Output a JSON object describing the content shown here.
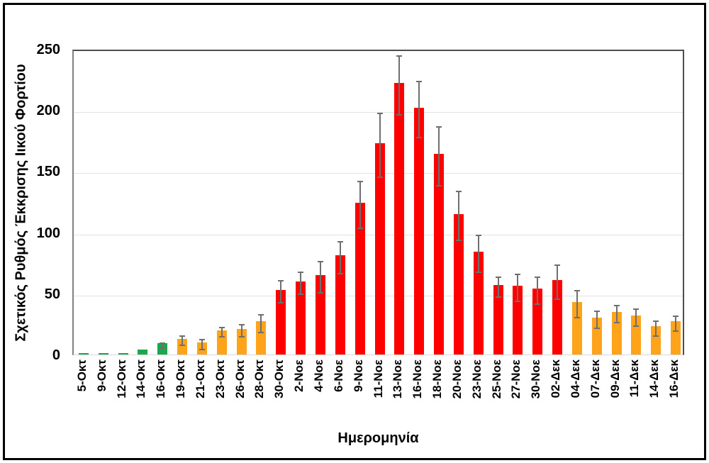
{
  "chart_data": {
    "type": "bar",
    "title": "",
    "xlabel": "Ημερομηνία",
    "ylabel": "Σχετικός Ρυθμός Έκκρισης Ιικού Φορτίου",
    "ylim": [
      0,
      250
    ],
    "yticks": [
      0,
      50,
      100,
      150,
      200,
      250
    ],
    "grid": true,
    "legend": "none",
    "palette": {
      "green": "#1AA84C",
      "orange": "#FFA31A",
      "red": "#FE0000"
    },
    "error_bar_color": "#6F6F6F",
    "categories": [
      "5-Οκτ",
      "9-Οκτ",
      "12-Οκτ",
      "14-Οκτ",
      "16-Οκτ",
      "19-Οκτ",
      "21-Οκτ",
      "23-Οκτ",
      "26-Οκτ",
      "28-Οκτ",
      "30-Οκτ",
      "2-Νοε",
      "4-Νοε",
      "6-Νοε",
      "9-Νοε",
      "11-Νοε",
      "13-Νοε",
      "16-Νοε",
      "18-Νοε",
      "20-Νοε",
      "23-Νοε",
      "25-Νοε",
      "27-Νοε",
      "30-Νοε",
      "02-Δεκ",
      "04-Δεκ",
      "07-Δεκ",
      "09-Δεκ",
      "11-Δεκ",
      "14-Δεκ",
      "16-Δεκ"
    ],
    "values": [
      1,
      1,
      1,
      4,
      9,
      13,
      10,
      20,
      21,
      27,
      53,
      60,
      65,
      81,
      124,
      173,
      222,
      202,
      164,
      115,
      84,
      57,
      56,
      54,
      61,
      43,
      30,
      35,
      32,
      23,
      27
    ],
    "errors": [
      0,
      0,
      0,
      0,
      2,
      4,
      4,
      4,
      5,
      7,
      9,
      9,
      13,
      13,
      19,
      26,
      24,
      23,
      24,
      20,
      15,
      8,
      11,
      11,
      14,
      11,
      7,
      7,
      7,
      6,
      6
    ],
    "bar_colors": [
      "green",
      "green",
      "green",
      "green",
      "green",
      "orange",
      "orange",
      "orange",
      "orange",
      "orange",
      "red",
      "red",
      "red",
      "red",
      "red",
      "red",
      "red",
      "red",
      "red",
      "red",
      "red",
      "red",
      "red",
      "red",
      "red",
      "orange",
      "orange",
      "orange",
      "orange",
      "orange",
      "orange"
    ]
  }
}
